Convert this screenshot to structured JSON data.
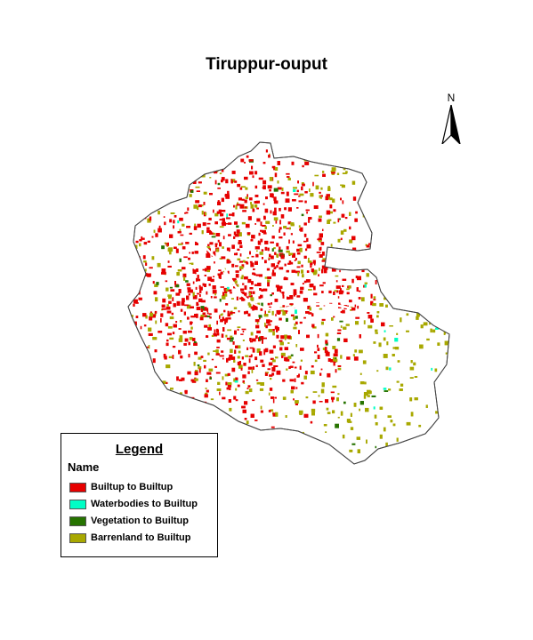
{
  "map": {
    "title": "Tiruppur-ouput",
    "north_label": "N",
    "legend": {
      "title": "Legend",
      "field_name": "Name",
      "items": [
        {
          "label": "Builtup to Builtup",
          "color": "#e60000"
        },
        {
          "label": "Waterbodies to Builtup",
          "color": "#00ffc5"
        },
        {
          "label": "Vegetation to Builtup",
          "color": "#267300"
        },
        {
          "label": "Barrenland to Builtup",
          "color": "#a8a800"
        }
      ]
    }
  }
}
